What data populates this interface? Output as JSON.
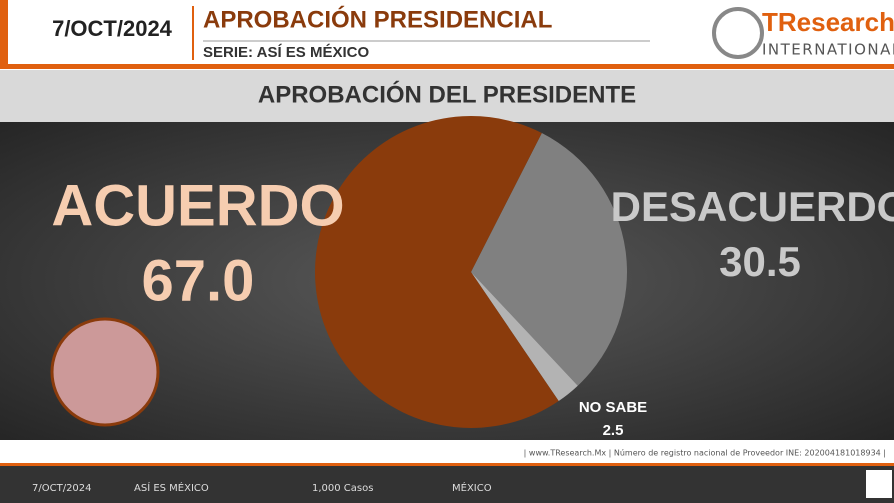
{
  "header": {
    "date": "7/OCT/2024",
    "title": "APROBACIÓN PRESIDENCIAL",
    "series": "SERIE: ASÍ ES MÉXICO",
    "logo": "TResearch",
    "logo_sub": "INTERNATIONAL"
  },
  "chart_data": {
    "type": "pie",
    "title": "APROBACIÓN DEL PRESIDENTE",
    "categories": [
      "ACUERDO",
      "DESACUERDO",
      "NO SABE"
    ],
    "values": [
      67.0,
      30.5,
      2.5
    ],
    "value_labels": [
      "67.0",
      "30.5",
      "2.5"
    ],
    "colors": [
      "#8a3b0c",
      "#808080",
      "#b3b3b3"
    ]
  },
  "footer": {
    "source": "| www.TResearch.Mx | Número de registro nacional de Proveedor INE: 202004181018934 |",
    "date": "7/OCT/2024",
    "series": "ASÍ ES MÉXICO",
    "cases": "1,000 Casos",
    "place": "MÉXICO"
  }
}
